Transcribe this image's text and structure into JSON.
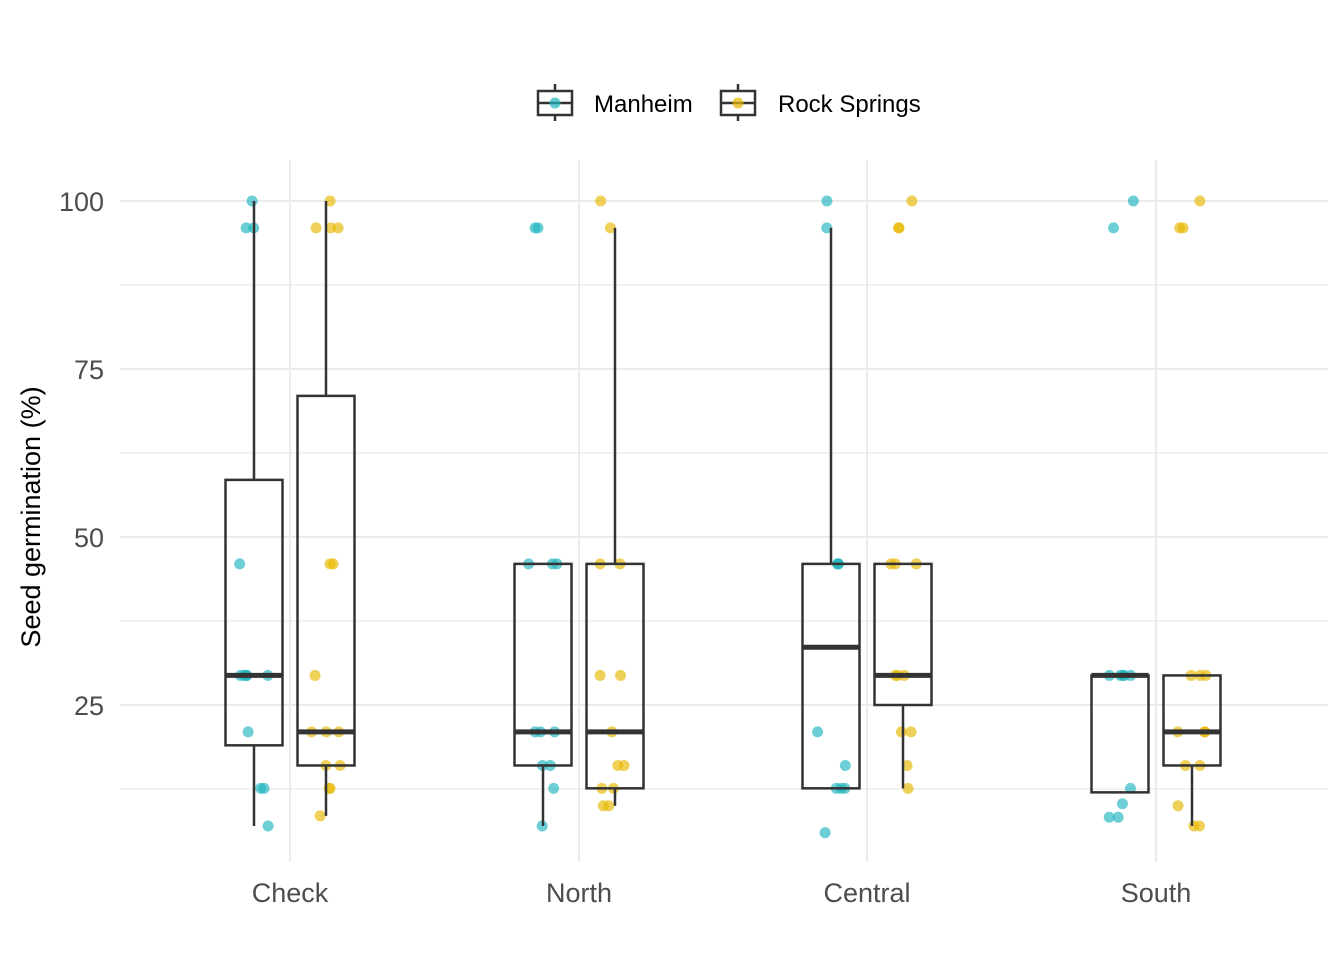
{
  "chart_data": {
    "type": "boxplot",
    "ylabel": "Seed germination (%)",
    "xlabel": "",
    "title": "",
    "categories": [
      "Check",
      "North",
      "Central",
      "South"
    ],
    "ylim": [
      3,
      104
    ],
    "yticks": [
      25,
      50,
      75,
      100
    ],
    "grid": true,
    "legend_position": "top",
    "series": [
      {
        "name": "Manheim",
        "color": "#1FB5BF",
        "boxes": [
          {
            "category": "Check",
            "min": 7,
            "q1": 19,
            "median": 29.4,
            "q3": 58.5,
            "max": 100
          },
          {
            "category": "North",
            "min": 7,
            "q1": 16,
            "median": 21,
            "q3": 46,
            "max": 46
          },
          {
            "category": "Central",
            "min": 12.6,
            "q1": 12.6,
            "median": 33.6,
            "q3": 46,
            "max": 96
          },
          {
            "category": "South",
            "min": 12,
            "q1": 12,
            "median": 29.4,
            "q3": 29.4,
            "max": 29.4
          }
        ],
        "points": [
          {
            "category": "Check",
            "values": [
              100,
              96,
              96,
              46,
              29.4,
              29.4,
              29.4,
              29.4,
              29.4,
              21,
              12.6,
              12.6,
              7
            ]
          },
          {
            "category": "North",
            "values": [
              96,
              96,
              46,
              46,
              46,
              21,
              21,
              21,
              16,
              16,
              12.6,
              7
            ]
          },
          {
            "category": "Central",
            "values": [
              100,
              96,
              46,
              46,
              46,
              21,
              16,
              12.6,
              12.6,
              12.6,
              6
            ]
          },
          {
            "category": "South",
            "values": [
              100,
              96,
              29.4,
              29.4,
              29.4,
              29.4,
              29.4,
              12.6,
              10.3,
              8.3,
              8.3
            ]
          }
        ]
      },
      {
        "name": "Rock Springs",
        "color": "#E7B800",
        "boxes": [
          {
            "category": "Check",
            "min": 8.5,
            "q1": 16,
            "median": 21,
            "q3": 71,
            "max": 100
          },
          {
            "category": "North",
            "min": 10,
            "q1": 12.6,
            "median": 21,
            "q3": 46,
            "max": 96
          },
          {
            "category": "Central",
            "min": 12.6,
            "q1": 25,
            "median": 29.4,
            "q3": 46,
            "max": 46
          },
          {
            "category": "South",
            "min": 7,
            "q1": 16,
            "median": 21,
            "q3": 29.4,
            "max": 29.4
          }
        ],
        "points": [
          {
            "category": "Check",
            "values": [
              100,
              96,
              96,
              96,
              46,
              46,
              29.4,
              21,
              21,
              21,
              16,
              16,
              12.6,
              12.6,
              8.5
            ]
          },
          {
            "category": "North",
            "values": [
              100,
              96,
              46,
              46,
              29.4,
              29.4,
              21,
              16,
              16,
              12.6,
              12.6,
              10,
              10
            ]
          },
          {
            "category": "Central",
            "values": [
              100,
              96,
              96,
              46,
              46,
              46,
              29.4,
              29.4,
              29.4,
              21,
              21,
              16,
              12.6
            ]
          },
          {
            "category": "South",
            "values": [
              100,
              96,
              96,
              29.4,
              29.4,
              29.4,
              21,
              21,
              21,
              16,
              16,
              10,
              7,
              7
            ]
          }
        ]
      }
    ]
  }
}
